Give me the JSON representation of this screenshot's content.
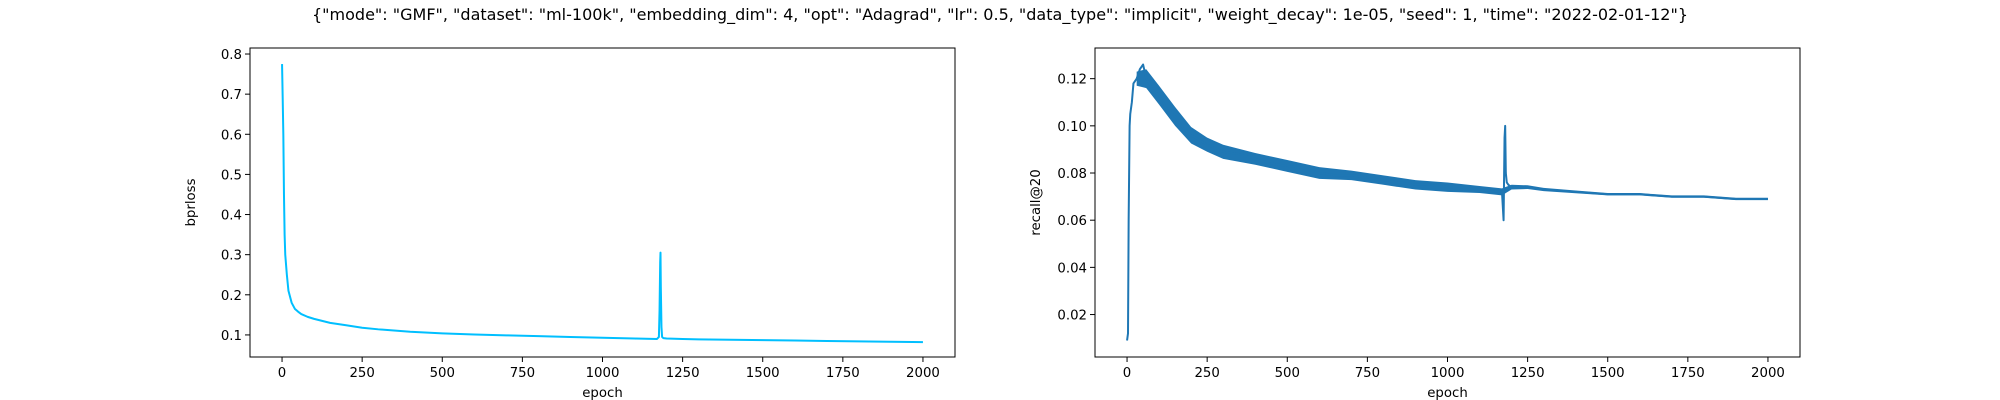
{
  "figure": {
    "suptitle": "{\"mode\": \"GMF\", \"dataset\": \"ml-100k\", \"embedding_dim\": 4, \"opt\": \"Adagrad\", \"lr\": 0.5, \"data_type\": \"implicit\", \"weight_decay\": 1e-05, \"seed\": 1, \"time\": \"2022-02-01-12\"}"
  },
  "chart_data": [
    {
      "type": "line",
      "xlabel": "epoch",
      "ylabel": "bprloss",
      "xlim": [
        -100,
        2100
      ],
      "ylim": [
        0.045,
        0.815
      ],
      "xticks": [
        0,
        250,
        500,
        750,
        1000,
        1250,
        1500,
        1750,
        2000
      ],
      "yticks": [
        0.1,
        0.2,
        0.3,
        0.4,
        0.5,
        0.6,
        0.7,
        0.8
      ],
      "xtick_labels": [
        "0",
        "250",
        "500",
        "750",
        "1000",
        "1250",
        "1500",
        "1750",
        "2000"
      ],
      "ytick_labels": [
        "0.1",
        "0.2",
        "0.3",
        "0.4",
        "0.5",
        "0.6",
        "0.7",
        "0.8"
      ],
      "grid": false,
      "series": [
        {
          "color": "#00bfff",
          "x": [
            0,
            2,
            4,
            6,
            8,
            10,
            15,
            20,
            30,
            40,
            50,
            60,
            80,
            100,
            125,
            150,
            200,
            250,
            300,
            400,
            500,
            600,
            700,
            800,
            900,
            1000,
            1100,
            1170,
            1176,
            1178,
            1180,
            1181,
            1182,
            1184,
            1186,
            1190,
            1200,
            1250,
            1300,
            1400,
            1500,
            1600,
            1700,
            1800,
            1900,
            2000
          ],
          "y": [
            0.775,
            0.69,
            0.6,
            0.45,
            0.35,
            0.3,
            0.25,
            0.21,
            0.18,
            0.165,
            0.158,
            0.152,
            0.145,
            0.14,
            0.135,
            0.13,
            0.124,
            0.118,
            0.114,
            0.108,
            0.104,
            0.101,
            0.099,
            0.097,
            0.095,
            0.093,
            0.091,
            0.09,
            0.095,
            0.16,
            0.28,
            0.305,
            0.22,
            0.12,
            0.095,
            0.092,
            0.091,
            0.09,
            0.089,
            0.088,
            0.087,
            0.086,
            0.085,
            0.084,
            0.083,
            0.082
          ]
        }
      ]
    },
    {
      "type": "line",
      "xlabel": "epoch",
      "ylabel": "recall@20",
      "xlim": [
        -100,
        2100
      ],
      "ylim": [
        0.002,
        0.133
      ],
      "xticks": [
        0,
        250,
        500,
        750,
        1000,
        1250,
        1500,
        1750,
        2000
      ],
      "yticks": [
        0.02,
        0.04,
        0.06,
        0.08,
        0.1,
        0.12
      ],
      "xtick_labels": [
        "0",
        "250",
        "500",
        "750",
        "1000",
        "1250",
        "1500",
        "1750",
        "2000"
      ],
      "ytick_labels": [
        "0.02",
        "0.04",
        "0.06",
        "0.08",
        "0.10",
        "0.12"
      ],
      "grid": false,
      "series": [
        {
          "color": "#1f77b4",
          "x": [
            0,
            3,
            5,
            8,
            10,
            15,
            20,
            30,
            40,
            50,
            60,
            70,
            80,
            100,
            125,
            150,
            175,
            200,
            250,
            300,
            350,
            400,
            450,
            500,
            550,
            600,
            650,
            700,
            750,
            800,
            850,
            900,
            950,
            1000,
            1050,
            1100,
            1150,
            1170,
            1175,
            1178,
            1180,
            1182,
            1185,
            1190,
            1200,
            1250,
            1300,
            1400,
            1500,
            1600,
            1700,
            1800,
            1900,
            2000
          ],
          "y": [
            0.009,
            0.012,
            0.06,
            0.1,
            0.105,
            0.11,
            0.118,
            0.12,
            0.124,
            0.126,
            0.12,
            0.118,
            0.115,
            0.113,
            0.107,
            0.104,
            0.099,
            0.096,
            0.092,
            0.089,
            0.088,
            0.086,
            0.084,
            0.083,
            0.082,
            0.08,
            0.079,
            0.079,
            0.078,
            0.077,
            0.076,
            0.075,
            0.075,
            0.074,
            0.073,
            0.073,
            0.072,
            0.072,
            0.06,
            0.095,
            0.1,
            0.08,
            0.076,
            0.075,
            0.074,
            0.074,
            0.073,
            0.072,
            0.071,
            0.071,
            0.07,
            0.07,
            0.069,
            0.069
          ],
          "envelope": {
            "x": [
              30,
              60,
              100,
              150,
              200,
              250,
              300,
              400,
              500,
              600,
              700,
              800,
              900,
              1000,
              1100,
              1170,
              1200,
              1250,
              1300,
              1400,
              1500,
              1600,
              1700,
              1800,
              1900,
              2000
            ],
            "half_width": [
              0.003,
              0.004,
              0.004,
              0.004,
              0.0035,
              0.003,
              0.003,
              0.0025,
              0.0025,
              0.0025,
              0.002,
              0.002,
              0.002,
              0.002,
              0.0015,
              0.0015,
              0.001,
              0.0008,
              0.0007,
              0.0006,
              0.0005,
              0.0005,
              0.0005,
              0.0005,
              0.0005,
              0.0005
            ]
          }
        }
      ]
    }
  ]
}
